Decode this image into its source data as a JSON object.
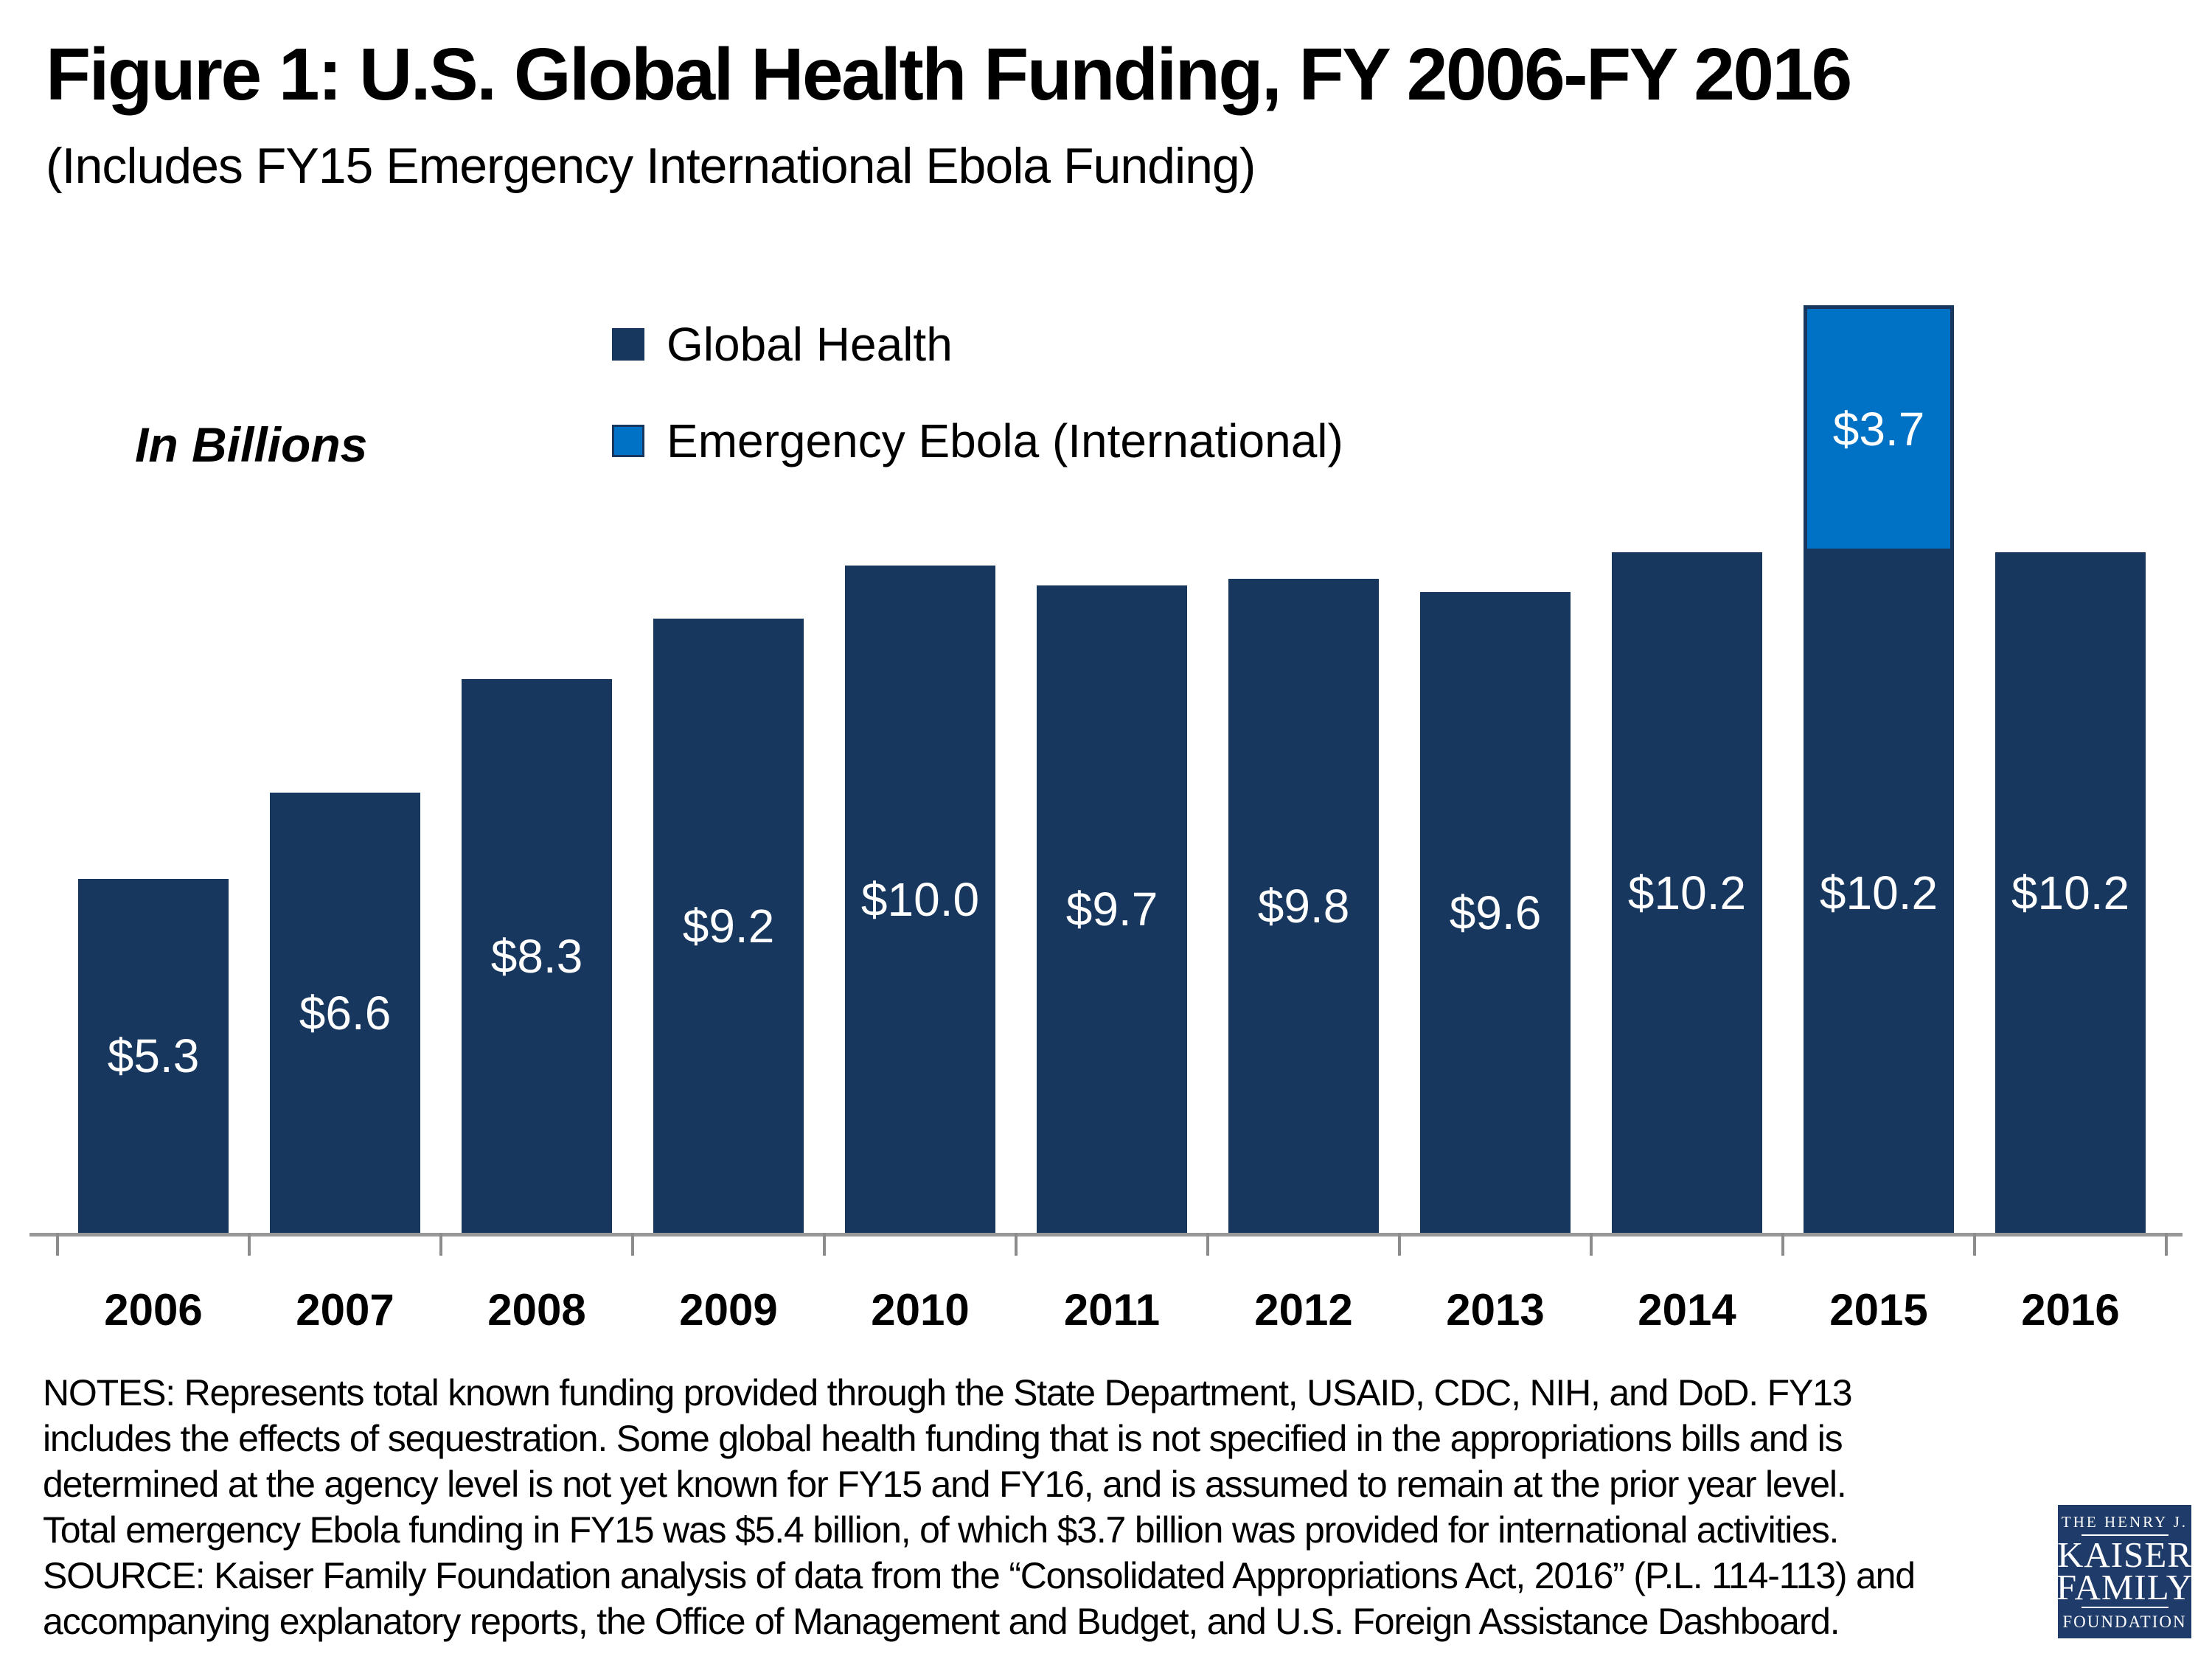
{
  "title": "Figure 1: U.S. Global Health Funding, FY 2006-FY 2016",
  "subtitle": "(Includes FY15 Emergency International Ebola Funding)",
  "y_axis_note": "In Billions",
  "legend": [
    {
      "label": "Global Health",
      "color": "#17375E"
    },
    {
      "label": "Emergency Ebola (International)",
      "color": "#0072C6"
    }
  ],
  "chart_data": {
    "type": "bar",
    "stacked": true,
    "categories": [
      "2006",
      "2007",
      "2008",
      "2009",
      "2010",
      "2011",
      "2012",
      "2013",
      "2014",
      "2015",
      "2016"
    ],
    "series": [
      {
        "name": "Global Health",
        "color": "#17375E",
        "values": [
          5.3,
          6.6,
          8.3,
          9.2,
          10.0,
          9.7,
          9.8,
          9.6,
          10.2,
          10.2,
          10.2
        ],
        "data_labels": [
          "$5.3",
          "$6.6",
          "$8.3",
          "$9.2",
          "$10.0",
          "$9.7",
          "$9.8",
          "$9.6",
          "$10.2",
          "$10.2",
          "$10.2"
        ]
      },
      {
        "name": "Emergency Ebola (International)",
        "color": "#0072C6",
        "values": [
          0,
          0,
          0,
          0,
          0,
          0,
          0,
          0,
          0,
          3.7,
          0
        ],
        "data_labels": [
          "",
          "",
          "",
          "",
          "",
          "",
          "",
          "",
          "",
          "$3.7",
          ""
        ]
      }
    ],
    "title": "Figure 1: U.S. Global Health Funding, FY 2006-FY 2016",
    "subtitle": "(Includes FY15 Emergency International Ebola Funding)",
    "xlabel": "",
    "ylabel": "In Billions",
    "ylim": [
      0,
      14.2
    ],
    "grid": false,
    "y_axis_visible": false,
    "legend_position": "top-center",
    "value_label_format": "$#.#",
    "value_label_position": "center-of-segment"
  },
  "notes_lines": [
    "NOTES: Represents total known funding provided through the State Department, USAID, CDC, NIH, and DoD. FY13",
    "includes the effects of sequestration. Some global health funding that is not specified in the appropriations bills and is",
    "determined at the agency level is not yet known for FY15 and FY16, and is assumed to remain at the prior year level.",
    "Total emergency Ebola funding in FY15 was $5.4 billion, of which $3.7 billion was provided for international activities.",
    "SOURCE: Kaiser Family Foundation analysis of data from the “Consolidated Appropriations Act, 2016” (P.L. 114-113) and",
    "accompanying explanatory reports, the Office of Management and Budget, and U.S. Foreign Assistance Dashboard."
  ],
  "logo": {
    "line1": "THE HENRY J.",
    "line2": "KAISER",
    "line3": "FAMILY",
    "line4": "FOUNDATION",
    "background": "#1F3B69"
  }
}
